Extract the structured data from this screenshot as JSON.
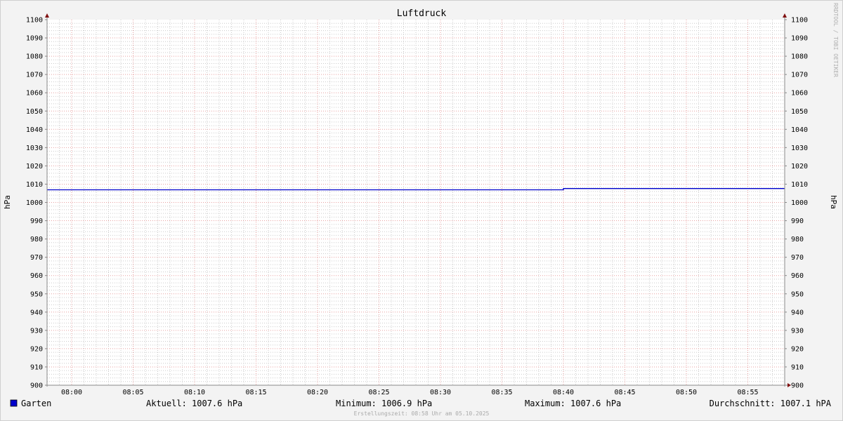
{
  "chart_data": {
    "type": "line",
    "title": "Luftdruck",
    "ylabel_left": "hPa",
    "ylabel_right": "hPa",
    "ylim": [
      900,
      1100
    ],
    "yticks": [
      900,
      910,
      920,
      930,
      940,
      950,
      960,
      970,
      980,
      990,
      1000,
      1010,
      1020,
      1030,
      1040,
      1050,
      1060,
      1070,
      1080,
      1090,
      1100
    ],
    "xlim": [
      "07:58",
      "08:58"
    ],
    "xticks": [
      "08:00",
      "08:05",
      "08:10",
      "08:15",
      "08:20",
      "08:25",
      "08:30",
      "08:35",
      "08:40",
      "08:45",
      "08:50",
      "08:55"
    ],
    "grid": true,
    "series": [
      {
        "name": "Garten",
        "color": "#0000cc",
        "x": [
          "07:58",
          "08:40",
          "08:40",
          "08:58"
        ],
        "y": [
          1006.9,
          1006.9,
          1007.6,
          1007.6
        ]
      }
    ],
    "legend": {
      "series_name": "Garten",
      "current": "Aktuell: 1007.6 hPa",
      "minimum": "Minimum: 1006.9 hPa",
      "maximum": "Maximum: 1007.6 hPa",
      "average": "Durchschnitt: 1007.1 hPA"
    },
    "footer": "Erstellungszeit: 08:58 Uhr am 05.10.2025",
    "watermark": "RRDTOOL / TOBI OETIKER",
    "colors": {
      "background": "#f3f3f3",
      "canvas": "#ffffff",
      "minor_grid": "#cccccc",
      "major_grid": "#e8a0a0",
      "axis": "#888888",
      "arrow": "#801010"
    }
  }
}
